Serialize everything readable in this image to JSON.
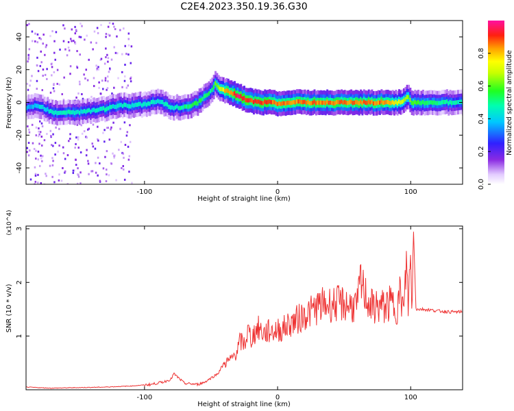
{
  "figure_title": "C2E4.2023.350.19.36.G30",
  "chart_data": [
    {
      "type": "heatmap",
      "xlabel": "Height of straight line (km)",
      "ylabel": "Frequency (Hz)",
      "xlim": [
        -189,
        139
      ],
      "ylim": [
        -50,
        50
      ],
      "xticks": [
        -100,
        0,
        100
      ],
      "yticks": [
        -40,
        -20,
        0,
        20,
        40
      ],
      "grid": false,
      "colorbar": {
        "label": "Normalized spectral amplitude",
        "range": [
          0.0,
          1.0
        ],
        "ticks": [
          0.0,
          0.2,
          0.4,
          0.6,
          0.8
        ],
        "tick_labels": [
          "0.0",
          "0.2",
          "0.4",
          "0.6",
          "0.8"
        ],
        "colormap": "rainbow (white → purple → blue → cyan → green → yellow → orange → red → magenta)"
      },
      "ridge": {
        "x": [
          -189,
          -180,
          -170,
          -160,
          -150,
          -140,
          -130,
          -120,
          -110,
          -100,
          -90,
          -80,
          -70,
          -60,
          -55,
          -50,
          -47,
          -45,
          -40,
          -35,
          -30,
          -25,
          -20,
          -15,
          -10,
          -5,
          0,
          10,
          20,
          30,
          40,
          50,
          60,
          70,
          80,
          90,
          95,
          97,
          100,
          110,
          120,
          130,
          139
        ],
        "y": [
          -3,
          -2,
          -6,
          -6,
          -6,
          -5,
          -4,
          -2,
          -2,
          -1,
          1,
          -3,
          -3,
          0,
          4,
          7,
          12,
          9,
          7,
          6,
          4,
          2,
          1,
          0,
          0,
          0,
          -1,
          0,
          0,
          0,
          0,
          0,
          0,
          0,
          0,
          0,
          1,
          4,
          0,
          0,
          0,
          0,
          0
        ],
        "peak_amplitude": {
          "x": [
            -189,
            -170,
            -120,
            -80,
            -60,
            -50,
            -40,
            -30,
            -20,
            -10,
            0,
            20,
            40,
            60,
            80,
            100,
            120,
            139
          ],
          "value": [
            0.35,
            0.45,
            0.45,
            0.45,
            0.55,
            0.5,
            0.8,
            0.95,
            0.9,
            0.9,
            0.85,
            0.85,
            0.85,
            0.85,
            0.85,
            0.6,
            0.5,
            0.45
          ]
        }
      },
      "scatter_noise_x_range": [
        -189,
        -110
      ]
    },
    {
      "type": "line",
      "xlabel": "Height of straight line (km)",
      "ylabel": "SNR (10 * v/v)",
      "y_multiplier_label": "(x10^4)",
      "xlim": [
        -189,
        139
      ],
      "ylim": [
        0,
        3.05
      ],
      "xticks": [
        -100,
        0,
        100
      ],
      "yticks": [
        1,
        2,
        3
      ],
      "grid": false,
      "color": "#ee3333",
      "series": [
        {
          "x": [
            -189,
            -170,
            -150,
            -130,
            -110,
            -95,
            -85,
            -80,
            -78,
            -70,
            -60,
            -55,
            -50,
            -45,
            -40,
            -35,
            -30,
            -28,
            -25,
            -22,
            -20,
            -15,
            -10,
            -5,
            0,
            5,
            10,
            15,
            20,
            25,
            30,
            40,
            50,
            60,
            62,
            70,
            80,
            85,
            90,
            92,
            95,
            97,
            98,
            100,
            101,
            102,
            104,
            110,
            120,
            130,
            139
          ],
          "y": [
            0.05,
            0.03,
            0.04,
            0.05,
            0.07,
            0.1,
            0.15,
            0.2,
            0.3,
            0.12,
            0.1,
            0.14,
            0.22,
            0.3,
            0.5,
            0.55,
            0.75,
            0.9,
            0.85,
            1.1,
            0.95,
            1.15,
            1.05,
            1.1,
            1.1,
            1.15,
            1.25,
            1.3,
            1.4,
            1.45,
            1.55,
            1.6,
            1.6,
            1.55,
            2.0,
            1.55,
            1.55,
            1.6,
            1.55,
            1.8,
            1.45,
            2.5,
            1.55,
            2.45,
            1.3,
            3.05,
            1.5,
            1.5,
            1.47,
            1.45,
            1.45
          ]
        }
      ]
    }
  ]
}
